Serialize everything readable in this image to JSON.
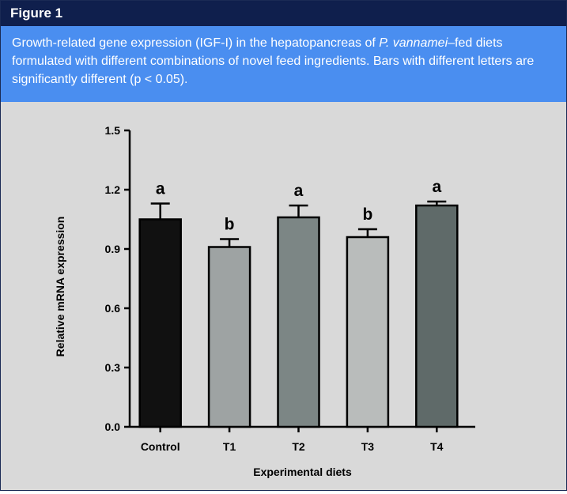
{
  "figure": {
    "label": "Figure 1",
    "caption_before": "Growth-related gene expression (IGF-I) in the hepatopancreas of ",
    "caption_italic": "P. vannamei",
    "caption_after": "–fed diets formulated with different combinations of novel feed ingredients. Bars with different letters are significantly different (p < 0.05)."
  },
  "colors": {
    "header_bg": "#0f1f4d",
    "caption_bg": "#4a8ef0",
    "plot_bg": "#d9d9d9"
  },
  "chart_data": {
    "type": "bar",
    "title": "",
    "xlabel": "Experimental diets",
    "ylabel": "Relative mRNA expression",
    "ylim": [
      0,
      1.5
    ],
    "yticks": [
      0.0,
      0.3,
      0.6,
      0.9,
      1.2,
      1.5
    ],
    "ytick_labels": [
      "0.0",
      "0.3",
      "0.6",
      "0.9",
      "1.2",
      "1.5"
    ],
    "categories": [
      "Control",
      "T1",
      "T2",
      "T3",
      "T4"
    ],
    "values": [
      1.05,
      0.91,
      1.06,
      0.96,
      1.12
    ],
    "errors": [
      0.08,
      0.04,
      0.06,
      0.04,
      0.02
    ],
    "letters": [
      "a",
      "b",
      "a",
      "b",
      "a"
    ],
    "bar_colors": [
      "#111111",
      "#9ea3a3",
      "#7c8685",
      "#b9bcbb",
      "#5f6a69"
    ],
    "grid": false,
    "legend": "none"
  }
}
